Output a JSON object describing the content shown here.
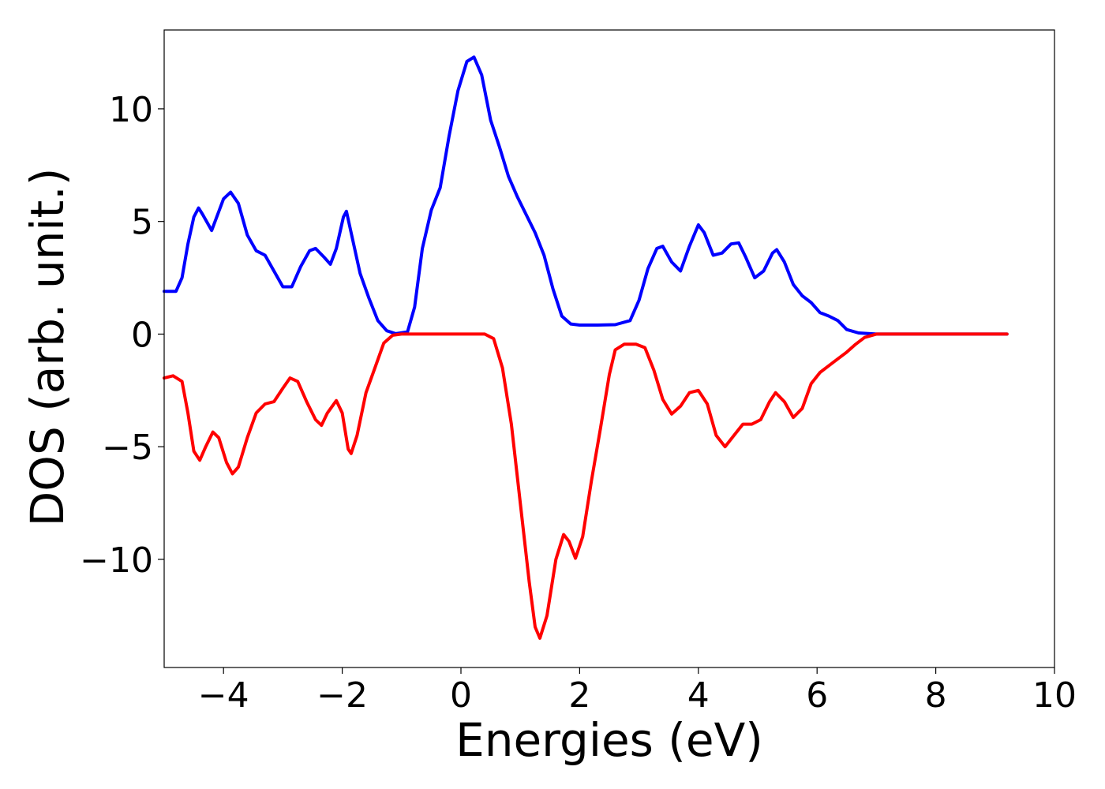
{
  "chart_data": {
    "type": "line",
    "title": "",
    "xlabel": "Energies (eV)",
    "ylabel": "DOS (arb. unit.)",
    "xlim": [
      -5,
      10
    ],
    "ylim": [
      -14.8,
      13.5
    ],
    "grid": false,
    "legend": "none",
    "x_ticks": [
      -4,
      -2,
      0,
      2,
      4,
      6,
      8,
      10
    ],
    "x_tick_labels": [
      "−4",
      "−2",
      "0",
      "2",
      "4",
      "6",
      "8",
      "10"
    ],
    "y_ticks": [
      10,
      5,
      0,
      -5,
      -10
    ],
    "y_tick_labels": [
      "10",
      "5",
      "0",
      "−5",
      "−10"
    ],
    "series": [
      {
        "color": "#0000ff",
        "points": [
          [
            -5.0,
            1.9
          ],
          [
            -4.8,
            1.9
          ],
          [
            -4.7,
            2.5
          ],
          [
            -4.6,
            4.0
          ],
          [
            -4.5,
            5.2
          ],
          [
            -4.42,
            5.6
          ],
          [
            -4.35,
            5.3
          ],
          [
            -4.2,
            4.6
          ],
          [
            -4.1,
            5.3
          ],
          [
            -4.0,
            6.0
          ],
          [
            -3.88,
            6.3
          ],
          [
            -3.75,
            5.8
          ],
          [
            -3.6,
            4.4
          ],
          [
            -3.45,
            3.7
          ],
          [
            -3.3,
            3.5
          ],
          [
            -3.15,
            2.8
          ],
          [
            -3.0,
            2.1
          ],
          [
            -2.85,
            2.1
          ],
          [
            -2.7,
            3.0
          ],
          [
            -2.55,
            3.7
          ],
          [
            -2.45,
            3.8
          ],
          [
            -2.3,
            3.4
          ],
          [
            -2.2,
            3.1
          ],
          [
            -2.1,
            3.8
          ],
          [
            -1.98,
            5.2
          ],
          [
            -1.93,
            5.45
          ],
          [
            -1.85,
            4.5
          ],
          [
            -1.7,
            2.7
          ],
          [
            -1.55,
            1.6
          ],
          [
            -1.4,
            0.6
          ],
          [
            -1.25,
            0.15
          ],
          [
            -1.1,
            0.02
          ],
          [
            -0.9,
            0.1
          ],
          [
            -0.78,
            1.2
          ],
          [
            -0.65,
            3.8
          ],
          [
            -0.5,
            5.5
          ],
          [
            -0.35,
            6.5
          ],
          [
            -0.2,
            8.8
          ],
          [
            -0.05,
            10.8
          ],
          [
            0.1,
            12.1
          ],
          [
            0.22,
            12.3
          ],
          [
            0.35,
            11.5
          ],
          [
            0.5,
            9.5
          ],
          [
            0.65,
            8.3
          ],
          [
            0.8,
            7.0
          ],
          [
            0.95,
            6.1
          ],
          [
            1.1,
            5.3
          ],
          [
            1.25,
            4.5
          ],
          [
            1.4,
            3.5
          ],
          [
            1.55,
            2.0
          ],
          [
            1.7,
            0.8
          ],
          [
            1.85,
            0.45
          ],
          [
            2.0,
            0.4
          ],
          [
            2.3,
            0.4
          ],
          [
            2.6,
            0.42
          ],
          [
            2.85,
            0.6
          ],
          [
            3.0,
            1.5
          ],
          [
            3.15,
            2.9
          ],
          [
            3.3,
            3.8
          ],
          [
            3.4,
            3.9
          ],
          [
            3.55,
            3.2
          ],
          [
            3.7,
            2.8
          ],
          [
            3.85,
            3.9
          ],
          [
            4.0,
            4.85
          ],
          [
            4.1,
            4.5
          ],
          [
            4.25,
            3.5
          ],
          [
            4.4,
            3.6
          ],
          [
            4.55,
            4.0
          ],
          [
            4.68,
            4.05
          ],
          [
            4.8,
            3.4
          ],
          [
            4.95,
            2.5
          ],
          [
            5.1,
            2.8
          ],
          [
            5.25,
            3.6
          ],
          [
            5.32,
            3.75
          ],
          [
            5.45,
            3.2
          ],
          [
            5.6,
            2.2
          ],
          [
            5.75,
            1.7
          ],
          [
            5.9,
            1.4
          ],
          [
            6.05,
            0.95
          ],
          [
            6.2,
            0.8
          ],
          [
            6.35,
            0.6
          ],
          [
            6.5,
            0.2
          ],
          [
            6.7,
            0.05
          ],
          [
            7.0,
            0.0
          ],
          [
            8.0,
            0.0
          ],
          [
            9.2,
            0.0
          ]
        ]
      },
      {
        "color": "#ff0000",
        "points": [
          [
            -5.0,
            -1.95
          ],
          [
            -4.85,
            -1.85
          ],
          [
            -4.7,
            -2.1
          ],
          [
            -4.6,
            -3.5
          ],
          [
            -4.5,
            -5.2
          ],
          [
            -4.4,
            -5.6
          ],
          [
            -4.3,
            -5.0
          ],
          [
            -4.18,
            -4.35
          ],
          [
            -4.08,
            -4.6
          ],
          [
            -3.95,
            -5.7
          ],
          [
            -3.85,
            -6.2
          ],
          [
            -3.75,
            -5.9
          ],
          [
            -3.6,
            -4.6
          ],
          [
            -3.45,
            -3.5
          ],
          [
            -3.3,
            -3.1
          ],
          [
            -3.15,
            -3.0
          ],
          [
            -3.0,
            -2.4
          ],
          [
            -2.88,
            -1.95
          ],
          [
            -2.75,
            -2.1
          ],
          [
            -2.6,
            -3.0
          ],
          [
            -2.45,
            -3.8
          ],
          [
            -2.35,
            -4.05
          ],
          [
            -2.25,
            -3.5
          ],
          [
            -2.1,
            -2.95
          ],
          [
            -2.0,
            -3.5
          ],
          [
            -1.9,
            -5.1
          ],
          [
            -1.85,
            -5.3
          ],
          [
            -1.75,
            -4.5
          ],
          [
            -1.6,
            -2.6
          ],
          [
            -1.45,
            -1.5
          ],
          [
            -1.3,
            -0.4
          ],
          [
            -1.15,
            -0.05
          ],
          [
            -1.0,
            0.0
          ],
          [
            0.0,
            0.0
          ],
          [
            0.4,
            0.0
          ],
          [
            0.55,
            -0.2
          ],
          [
            0.7,
            -1.5
          ],
          [
            0.85,
            -4.0
          ],
          [
            1.0,
            -7.5
          ],
          [
            1.15,
            -11.0
          ],
          [
            1.25,
            -13.0
          ],
          [
            1.33,
            -13.5
          ],
          [
            1.45,
            -12.5
          ],
          [
            1.6,
            -10.0
          ],
          [
            1.73,
            -8.9
          ],
          [
            1.82,
            -9.2
          ],
          [
            1.93,
            -9.95
          ],
          [
            2.05,
            -9.0
          ],
          [
            2.2,
            -6.5
          ],
          [
            2.35,
            -4.2
          ],
          [
            2.5,
            -1.8
          ],
          [
            2.6,
            -0.7
          ],
          [
            2.75,
            -0.45
          ],
          [
            2.95,
            -0.45
          ],
          [
            3.1,
            -0.6
          ],
          [
            3.25,
            -1.6
          ],
          [
            3.4,
            -2.9
          ],
          [
            3.55,
            -3.55
          ],
          [
            3.7,
            -3.2
          ],
          [
            3.85,
            -2.6
          ],
          [
            4.0,
            -2.5
          ],
          [
            4.15,
            -3.1
          ],
          [
            4.3,
            -4.5
          ],
          [
            4.45,
            -5.0
          ],
          [
            4.6,
            -4.5
          ],
          [
            4.75,
            -4.0
          ],
          [
            4.9,
            -4.0
          ],
          [
            5.05,
            -3.8
          ],
          [
            5.2,
            -3.0
          ],
          [
            5.3,
            -2.6
          ],
          [
            5.45,
            -3.0
          ],
          [
            5.6,
            -3.7
          ],
          [
            5.75,
            -3.3
          ],
          [
            5.9,
            -2.2
          ],
          [
            6.05,
            -1.7
          ],
          [
            6.2,
            -1.4
          ],
          [
            6.35,
            -1.1
          ],
          [
            6.5,
            -0.8
          ],
          [
            6.65,
            -0.45
          ],
          [
            6.8,
            -0.15
          ],
          [
            7.0,
            0.0
          ],
          [
            8.0,
            0.0
          ],
          [
            9.2,
            0.0
          ]
        ]
      }
    ]
  }
}
